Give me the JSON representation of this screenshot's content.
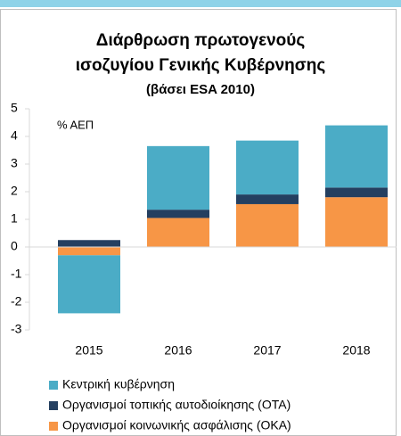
{
  "chart_data": {
    "type": "stacked_bar",
    "title": [
      "Διάρθρωση πρωτογενούς",
      "ισοζυγίου Γενικής Κυβέρνησης"
    ],
    "subtitle": "(βάσει ESA 2010)",
    "y_label": "% ΑΕΠ",
    "categories": [
      "2015",
      "2016",
      "2017",
      "2018"
    ],
    "series": [
      {
        "name": "Οργανισμοί κοινωνικής ασφάλισης (ΟΚΑ)",
        "color": "#f79646",
        "values": [
          -0.3,
          1.05,
          1.55,
          1.8
        ]
      },
      {
        "name": "Οργανισμοί τοπικής αυτοδιοίκησης (ΟΤΑ)",
        "color": "#243f60",
        "values": [
          0.25,
          0.3,
          0.35,
          0.35
        ]
      },
      {
        "name": "Κεντρική κυβέρνηση",
        "color": "#4bacc6",
        "values": [
          -2.1,
          2.3,
          1.95,
          2.25
        ]
      }
    ],
    "ylim": [
      -3,
      5
    ],
    "yticks": [
      -3,
      -2,
      -1,
      0,
      1,
      2,
      3,
      4,
      5
    ]
  }
}
